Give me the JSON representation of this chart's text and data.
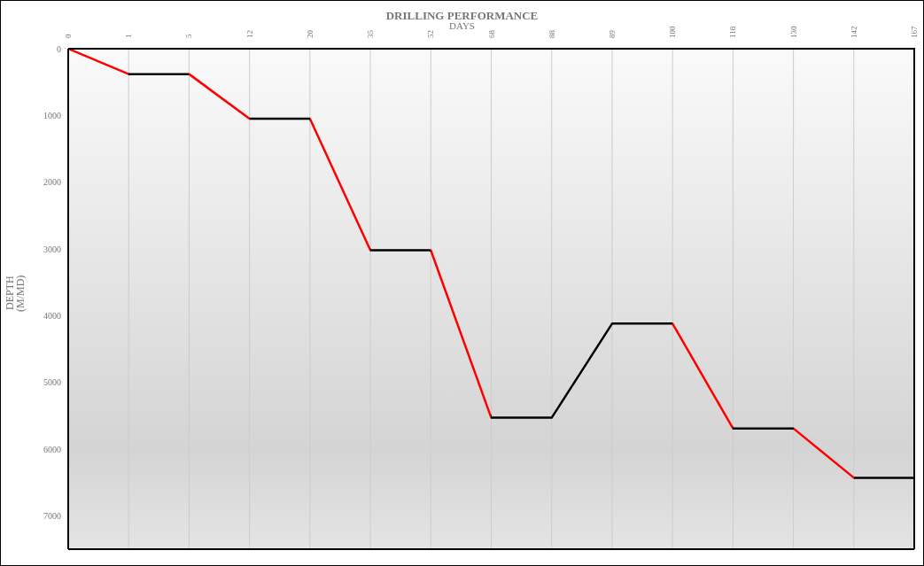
{
  "chart_data": {
    "type": "line",
    "title": "DRILLING PERFORMANCE",
    "xlabel": "DAYS",
    "ylabel": "DEPTH (M/MD)",
    "categories": [
      "0",
      "1",
      "5",
      "12",
      "20",
      "35",
      "52",
      "68",
      "88",
      "89",
      "100",
      "118",
      "130",
      "142",
      "167"
    ],
    "series": [
      {
        "values": [
          0,
          380,
          380,
          1050,
          1050,
          3020,
          3020,
          5530,
          5530,
          4120,
          4120,
          5690,
          5690,
          6430,
          6430
        ],
        "colors": [
          "#ff0000",
          "#ff0000",
          "#000000",
          "#ff0000",
          "#000000",
          "#ff0000",
          "#000000",
          "#ff0000",
          "#000000",
          "#000000",
          "#000000",
          "#ff0000",
          "#000000",
          "#ff0000",
          "#000000"
        ]
      }
    ],
    "ylim": [
      7500,
      0
    ],
    "yticks": [
      0,
      1000,
      2000,
      3000,
      4000,
      5000,
      6000,
      7000
    ],
    "grid": "x",
    "marker": "none",
    "line_style": "solid"
  }
}
